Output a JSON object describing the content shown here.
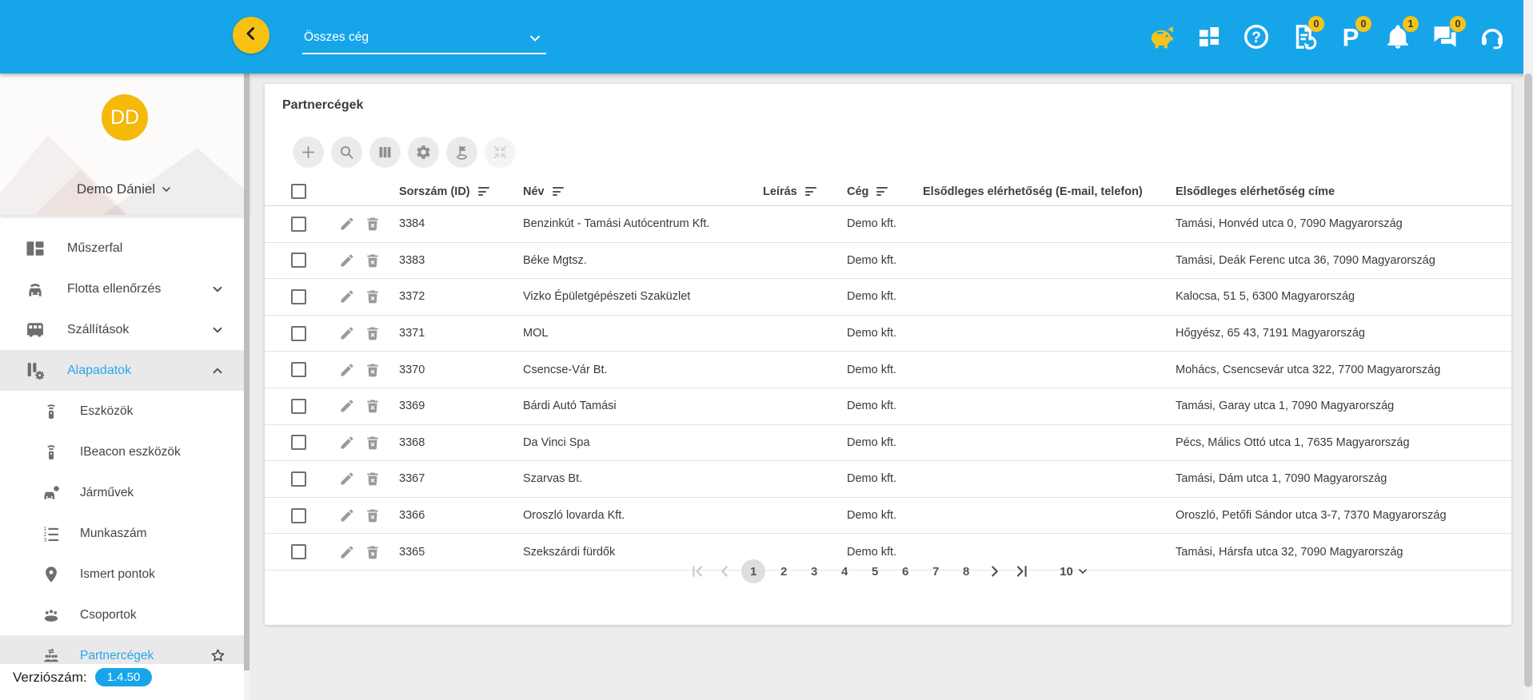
{
  "topbar": {
    "company_selector": {
      "value": "Összes cég"
    },
    "icons": [
      {
        "icon": "piggy-bank",
        "name": "piggy-bank-icon",
        "badge": null
      },
      {
        "icon": "modules",
        "name": "modules-icon",
        "badge": null
      },
      {
        "icon": "help",
        "name": "help-icon",
        "badge": null
      },
      {
        "icon": "document-sync",
        "name": "document-sync-icon",
        "badge": "0"
      },
      {
        "icon": "parking",
        "name": "parking-icon",
        "badge": "0"
      },
      {
        "icon": "notifications",
        "name": "notifications-icon",
        "badge": "1"
      },
      {
        "icon": "messages",
        "name": "messages-icon",
        "badge": "0"
      },
      {
        "icon": "support",
        "name": "support-icon",
        "badge": null
      }
    ]
  },
  "sidebar": {
    "user": {
      "initials": "DD",
      "name": "Demo Dániel"
    },
    "items": [
      {
        "icon": "dashboard",
        "name": "sidebar-item-muszerfal",
        "label": "Műszerfal",
        "child": false,
        "chevron": null,
        "selected": false,
        "star": false
      },
      {
        "icon": "fleet-check",
        "name": "sidebar-item-flotta-ellenorzes",
        "label": "Flotta ellenőrzés",
        "child": false,
        "chevron": "down",
        "selected": false,
        "star": false
      },
      {
        "icon": "shipments",
        "name": "sidebar-item-szallitasok",
        "label": "Szállítások",
        "child": false,
        "chevron": "down",
        "selected": false,
        "star": false
      },
      {
        "icon": "base-data",
        "name": "sidebar-item-alapadatok",
        "label": "Alapadatok",
        "child": false,
        "chevron": "up",
        "selected": true,
        "star": false
      },
      {
        "icon": "device",
        "name": "sidebar-item-eszkozok",
        "label": "Eszközök",
        "child": true,
        "chevron": null,
        "selected": false,
        "star": false
      },
      {
        "icon": "device",
        "name": "sidebar-item-ibeacon-eszkozok",
        "label": "IBeacon eszközök",
        "child": true,
        "chevron": null,
        "selected": false,
        "star": false
      },
      {
        "icon": "vehicles",
        "name": "sidebar-item-jarmuvek",
        "label": "Járművek",
        "child": true,
        "chevron": null,
        "selected": false,
        "star": false
      },
      {
        "icon": "work-number",
        "name": "sidebar-item-munkaszam",
        "label": "Munkaszám",
        "child": true,
        "chevron": null,
        "selected": false,
        "star": false
      },
      {
        "icon": "known-points",
        "name": "sidebar-item-ismert-pontok",
        "label": "Ismert pontok",
        "child": true,
        "chevron": null,
        "selected": false,
        "star": false
      },
      {
        "icon": "groups",
        "name": "sidebar-item-csoportok",
        "label": "Csoportok",
        "child": true,
        "chevron": null,
        "selected": false,
        "star": false
      },
      {
        "icon": "partner-companies",
        "name": "sidebar-item-partnercegek",
        "label": "Partnercégek",
        "child": true,
        "chevron": null,
        "selected": true,
        "star": true
      }
    ],
    "version_label": "Verziószám:",
    "version_value": "1.4.50"
  },
  "main": {
    "title": "Partnercégek",
    "toolbar": [
      {
        "icon": "add",
        "name": "add-button",
        "disabled": false
      },
      {
        "icon": "search",
        "name": "search-button",
        "disabled": false
      },
      {
        "icon": "columns",
        "name": "columns-button",
        "disabled": false
      },
      {
        "icon": "settings",
        "name": "settings-button",
        "disabled": false
      },
      {
        "icon": "map-flag",
        "name": "map-flag-button",
        "disabled": false
      },
      {
        "icon": "collapse",
        "name": "collapse-button",
        "disabled": true
      }
    ],
    "table": {
      "columns": [
        {
          "label": "Sorszám (ID)",
          "sortable": true
        },
        {
          "label": "Név",
          "sortable": true
        },
        {
          "label": "Leírás",
          "sortable": true
        },
        {
          "label": "Cég",
          "sortable": true
        },
        {
          "label": "Elsődleges elérhetőség (E-mail, telefon)",
          "sortable": false
        },
        {
          "label": "Elsődleges elérhetőség címe",
          "sortable": false
        }
      ],
      "rows": [
        {
          "id": "3384",
          "name": "Benzinkút - Tamási Autócentrum Kft.",
          "description": "",
          "company": "Demo kft.",
          "contact": "",
          "address": "Tamási, Honvéd utca 0, 7090 Magyarország"
        },
        {
          "id": "3383",
          "name": "Béke Mgtsz.",
          "description": "",
          "company": "Demo kft.",
          "contact": "",
          "address": "Tamási, Deák Ferenc utca 36, 7090 Magyarország"
        },
        {
          "id": "3372",
          "name": "Vizko Épületgépészeti Szaküzlet",
          "description": "",
          "company": "Demo kft.",
          "contact": "",
          "address": "Kalocsa, 51 5, 6300 Magyarország"
        },
        {
          "id": "3371",
          "name": "MOL",
          "description": "",
          "company": "Demo kft.",
          "contact": "",
          "address": "Hőgyész, 65 43, 7191 Magyarország"
        },
        {
          "id": "3370",
          "name": "Csencse-Vár Bt.",
          "description": "",
          "company": "Demo kft.",
          "contact": "",
          "address": "Mohács, Csencsevár utca 322, 7700 Magyarország"
        },
        {
          "id": "3369",
          "name": "Bárdi Autó Tamási",
          "description": "",
          "company": "Demo kft.",
          "contact": "",
          "address": "Tamási, Garay utca 1, 7090 Magyarország"
        },
        {
          "id": "3368",
          "name": "Da Vinci Spa",
          "description": "",
          "company": "Demo kft.",
          "contact": "",
          "address": "Pécs, Málics Ottó utca 1, 7635 Magyarország"
        },
        {
          "id": "3367",
          "name": "Szarvas Bt.",
          "description": "",
          "company": "Demo kft.",
          "contact": "",
          "address": "Tamási, Dám utca 1, 7090 Magyarország"
        },
        {
          "id": "3366",
          "name": "Oroszló lovarda Kft.",
          "description": "",
          "company": "Demo kft.",
          "contact": "",
          "address": "Oroszló, Petőfi Sándor utca 3-7, 7370 Magyarország"
        },
        {
          "id": "3365",
          "name": "Szekszárdi fürdők",
          "description": "",
          "company": "Demo kft.",
          "contact": "",
          "address": "Tamási, Hársfa utca 32, 7090 Magyarország"
        }
      ]
    },
    "pagination": {
      "pages": [
        "1",
        "2",
        "3",
        "4",
        "5",
        "6",
        "7",
        "8"
      ],
      "active_page": "1",
      "page_size": "10"
    }
  },
  "colors": {
    "topbar_blue": "#17A5EA",
    "accent_yellow": "#F7C211",
    "badge_yellow": "#F2C51D",
    "selected_text_blue": "#25A8E9",
    "avatar_yellow": "#F5B90A"
  }
}
